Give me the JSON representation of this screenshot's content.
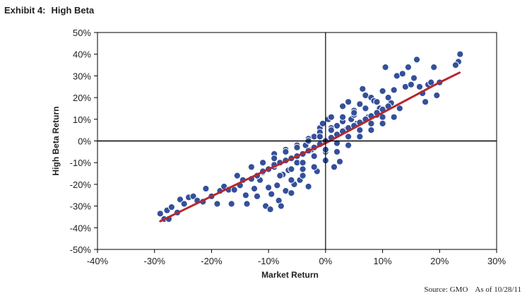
{
  "header": {
    "exhibit": "Exhibit 4:",
    "title": "High Beta"
  },
  "footer": {
    "source": "Source: GMO",
    "asof": "As of 10/28/11"
  },
  "colors": {
    "point": "#34509a",
    "point_stroke": "#ffffff",
    "trend": "#b8262e",
    "axis": "#000000"
  },
  "chart_data": {
    "type": "scatter",
    "title": "High Beta",
    "xlabel": "Market Return",
    "ylabel": "High Beta Return",
    "xlim": [
      -0.4,
      0.3
    ],
    "ylim": [
      -0.5,
      0.5
    ],
    "xticks": [
      "-40%",
      "-30%",
      "-20%",
      "-10%",
      "0%",
      "10%",
      "20%",
      "30%"
    ],
    "yticks": [
      "50%",
      "40%",
      "30%",
      "20%",
      "10%",
      "0%",
      "-10%",
      "-20%",
      "-30%",
      "-40%",
      "-50%"
    ],
    "grid": false,
    "zero_lines": true,
    "points": [
      [
        -0.29,
        -0.335
      ],
      [
        -0.283,
        -0.36
      ],
      [
        -0.278,
        -0.32
      ],
      [
        -0.275,
        -0.36
      ],
      [
        -0.27,
        -0.305
      ],
      [
        -0.26,
        -0.33
      ],
      [
        -0.255,
        -0.27
      ],
      [
        -0.248,
        -0.29
      ],
      [
        -0.24,
        -0.26
      ],
      [
        -0.232,
        -0.255
      ],
      [
        -0.225,
        -0.275
      ],
      [
        -0.215,
        -0.28
      ],
      [
        -0.21,
        -0.22
      ],
      [
        -0.2,
        -0.255
      ],
      [
        -0.19,
        -0.29
      ],
      [
        -0.185,
        -0.23
      ],
      [
        -0.178,
        -0.21
      ],
      [
        -0.17,
        -0.225
      ],
      [
        -0.165,
        -0.29
      ],
      [
        -0.16,
        -0.225
      ],
      [
        -0.155,
        -0.16
      ],
      [
        -0.15,
        -0.205
      ],
      [
        -0.145,
        -0.18
      ],
      [
        -0.14,
        -0.25
      ],
      [
        -0.138,
        -0.29
      ],
      [
        -0.13,
        -0.175
      ],
      [
        -0.125,
        -0.22
      ],
      [
        -0.12,
        -0.255
      ],
      [
        -0.115,
        -0.18
      ],
      [
        -0.11,
        -0.145
      ],
      [
        -0.105,
        -0.3
      ],
      [
        -0.1,
        -0.215
      ],
      [
        -0.097,
        -0.315
      ],
      [
        -0.095,
        -0.245
      ],
      [
        -0.09,
        -0.12
      ],
      [
        -0.085,
        -0.205
      ],
      [
        -0.082,
        -0.275
      ],
      [
        -0.078,
        -0.3
      ],
      [
        -0.075,
        -0.155
      ],
      [
        -0.07,
        -0.23
      ],
      [
        -0.065,
        -0.135
      ],
      [
        -0.06,
        -0.24
      ],
      [
        -0.055,
        -0.2
      ],
      [
        -0.05,
        -0.1
      ],
      [
        -0.045,
        -0.18
      ],
      [
        -0.04,
        -0.13
      ],
      [
        -0.035,
        -0.02
      ],
      [
        -0.03,
        -0.21
      ],
      [
        -0.025,
        -0.04
      ],
      [
        -0.02,
        0.02
      ],
      [
        -0.015,
        -0.14
      ],
      [
        -0.01,
        0.06
      ],
      [
        -0.005,
        0.08
      ],
      [
        0.0,
        -0.05
      ],
      [
        0.005,
        0.1
      ],
      [
        0.01,
        0.11
      ],
      [
        0.015,
        -0.12
      ],
      [
        0.02,
        0.07
      ],
      [
        0.025,
        -0.095
      ],
      [
        0.03,
        0.16
      ],
      [
        0.035,
        0.05
      ],
      [
        0.04,
        0.18
      ],
      [
        0.045,
        0.1
      ],
      [
        0.05,
        0.14
      ],
      [
        0.055,
        0.08
      ],
      [
        0.06,
        0.17
      ],
      [
        0.065,
        0.24
      ],
      [
        0.07,
        0.21
      ],
      [
        0.075,
        0.11
      ],
      [
        0.08,
        0.2
      ],
      [
        0.085,
        0.185
      ],
      [
        0.09,
        0.12
      ],
      [
        0.095,
        0.15
      ],
      [
        0.1,
        0.23
      ],
      [
        0.105,
        0.34
      ],
      [
        0.11,
        0.2
      ],
      [
        0.115,
        0.175
      ],
      [
        0.12,
        0.235
      ],
      [
        0.125,
        0.3
      ],
      [
        0.13,
        0.15
      ],
      [
        0.135,
        0.31
      ],
      [
        0.14,
        0.25
      ],
      [
        0.145,
        0.34
      ],
      [
        0.15,
        0.26
      ],
      [
        0.155,
        0.29
      ],
      [
        0.16,
        0.375
      ],
      [
        0.165,
        0.25
      ],
      [
        0.17,
        0.22
      ],
      [
        0.175,
        0.18
      ],
      [
        0.18,
        0.26
      ],
      [
        0.185,
        0.27
      ],
      [
        0.19,
        0.34
      ],
      [
        0.195,
        0.21
      ],
      [
        0.2,
        0.27
      ],
      [
        0.233,
        0.365
      ],
      [
        0.236,
        0.4
      ],
      [
        0.228,
        0.35
      ],
      [
        -0.12,
        -0.16
      ],
      [
        -0.11,
        -0.14
      ],
      [
        -0.1,
        -0.13
      ],
      [
        -0.09,
        -0.11
      ],
      [
        -0.08,
        -0.1
      ],
      [
        -0.07,
        -0.09
      ],
      [
        -0.06,
        -0.08
      ],
      [
        -0.05,
        -0.07
      ],
      [
        -0.04,
        -0.06
      ],
      [
        -0.03,
        -0.045
      ],
      [
        -0.02,
        -0.03
      ],
      [
        -0.01,
        -0.015
      ],
      [
        0.0,
        0.0
      ],
      [
        0.01,
        0.015
      ],
      [
        0.02,
        0.03
      ],
      [
        0.03,
        0.045
      ],
      [
        0.04,
        0.06
      ],
      [
        0.05,
        0.07
      ],
      [
        0.06,
        0.085
      ],
      [
        0.07,
        0.1
      ],
      [
        0.08,
        0.115
      ],
      [
        0.09,
        0.13
      ],
      [
        0.1,
        0.145
      ],
      [
        0.11,
        0.16
      ],
      [
        -0.08,
        -0.16
      ],
      [
        -0.06,
        -0.13
      ],
      [
        -0.04,
        -0.1
      ],
      [
        -0.02,
        -0.07
      ],
      [
        0.0,
        -0.04
      ],
      [
        0.02,
        -0.01
      ],
      [
        0.04,
        0.02
      ],
      [
        0.06,
        0.05
      ],
      [
        0.08,
        0.08
      ],
      [
        0.1,
        0.11
      ],
      [
        -0.09,
        -0.06
      ],
      [
        -0.07,
        -0.04
      ],
      [
        -0.05,
        -0.02
      ],
      [
        -0.03,
        0.01
      ],
      [
        -0.01,
        0.04
      ],
      [
        0.01,
        0.06
      ],
      [
        0.03,
        0.09
      ],
      [
        0.05,
        0.12
      ],
      [
        0.07,
        0.15
      ],
      [
        0.09,
        0.18
      ],
      [
        -0.06,
        -0.18
      ],
      [
        -0.04,
        -0.16
      ],
      [
        -0.02,
        -0.12
      ],
      [
        0.0,
        -0.09
      ],
      [
        0.02,
        -0.05
      ],
      [
        0.04,
        -0.02
      ],
      [
        0.06,
        0.02
      ],
      [
        0.08,
        0.05
      ],
      [
        0.1,
        0.08
      ],
      [
        0.12,
        0.11
      ],
      [
        -0.13,
        -0.12
      ],
      [
        -0.11,
        -0.1
      ],
      [
        -0.09,
        -0.08
      ],
      [
        -0.07,
        -0.05
      ],
      [
        -0.05,
        -0.03
      ],
      [
        -0.03,
        0.0
      ],
      [
        -0.01,
        0.02
      ],
      [
        0.01,
        0.05
      ],
      [
        0.03,
        0.11
      ],
      [
        0.05,
        0.13
      ]
    ],
    "trend_line": [
      [
        -0.29,
        -0.37
      ],
      [
        -0.2,
        -0.255
      ],
      [
        -0.1,
        -0.13
      ],
      [
        0.0,
        -0.01
      ],
      [
        0.1,
        0.13
      ],
      [
        0.2,
        0.27
      ],
      [
        0.235,
        0.315
      ]
    ]
  }
}
